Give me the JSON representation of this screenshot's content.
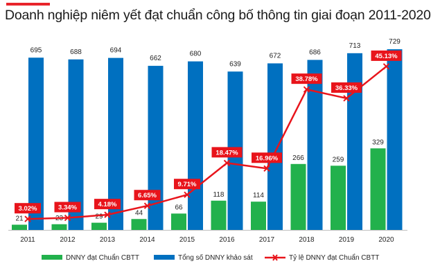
{
  "title": "Doanh nghiệp niêm yết đạt chuẩn công bố thông tin giai đoạn 2011-2020",
  "colors": {
    "accent": "#e8242b",
    "green": "#22b14c",
    "blue": "#0070c0",
    "red": "#e8141b"
  },
  "chart_data": {
    "type": "bar",
    "title": "Doanh nghiệp niêm yết đạt chuẩn công bố thông tin giai đoạn 2011-2020",
    "categories": [
      "2011",
      "2012",
      "2013",
      "2014",
      "2015",
      "2016",
      "2017",
      "2018",
      "2019",
      "2020"
    ],
    "series": [
      {
        "name": "DNNY đạt Chuẩn CBTT",
        "kind": "bar",
        "color": "#22b14c",
        "values": [
          21,
          23,
          29,
          44,
          66,
          118,
          114,
          266,
          259,
          329
        ]
      },
      {
        "name": "Tổng số DNNY khảo sát",
        "kind": "bar",
        "color": "#0070c0",
        "values": [
          695,
          688,
          694,
          662,
          680,
          639,
          672,
          686,
          713,
          729
        ]
      },
      {
        "name": "Tỷ lệ DNNY đạt Chuẩn CBTT",
        "kind": "line",
        "color": "#e8141b",
        "values": [
          3.02,
          3.34,
          4.18,
          6.65,
          9.71,
          18.47,
          16.96,
          38.78,
          36.33,
          45.13
        ],
        "labels": [
          "3.02%",
          "3.34%",
          "4.18%",
          "6.65%",
          "9.71%",
          "18.47%",
          "16.96%",
          "38.78%",
          "36.33%",
          "45.13%"
        ]
      }
    ],
    "ylim": [
      0,
      760
    ],
    "ylim_rate": [
      0,
      52
    ],
    "grid": false,
    "legend_position": "bottom"
  }
}
